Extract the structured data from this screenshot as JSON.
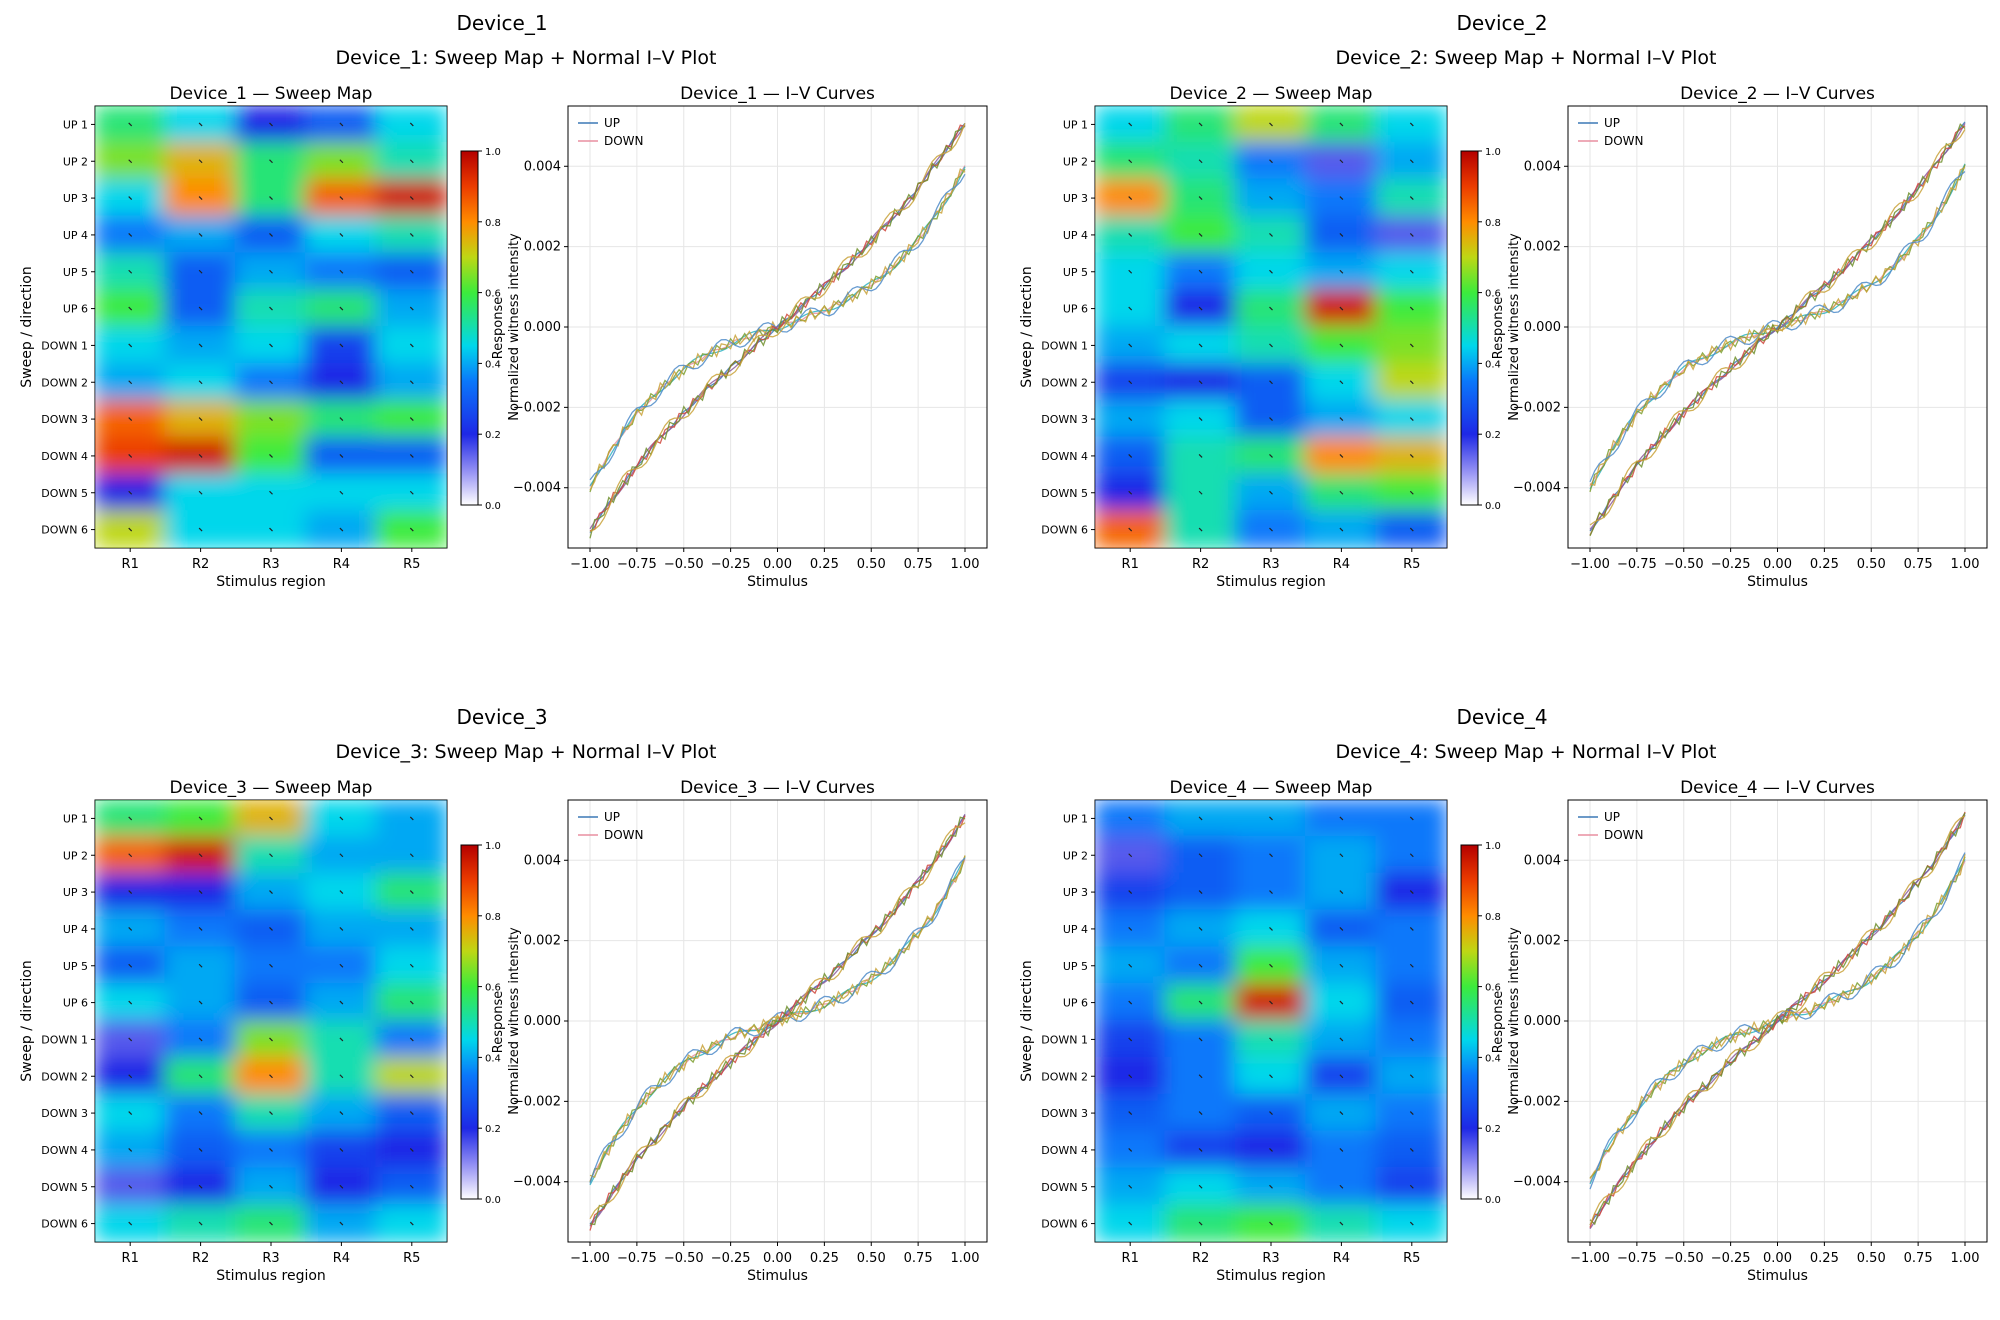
{
  "chart_data": [
    {
      "type": "composite",
      "device": "Device_1",
      "title": "Device_1",
      "subtitle": "Device_1: Sweep Map + Normal I–V Plot",
      "heatmap": {
        "type": "heatmap",
        "title": "Device_1 — Sweep Map",
        "xlabel": "Stimulus region",
        "ylabel": "Sweep / direction",
        "x_categories": [
          "R1",
          "R2",
          "R3",
          "R4",
          "R5"
        ],
        "y_categories": [
          "UP 1",
          "UP 2",
          "UP 3",
          "UP 4",
          "UP 5",
          "UP 6",
          "DOWN 1",
          "DOWN 2",
          "DOWN 3",
          "DOWN 4",
          "DOWN 5",
          "DOWN 6"
        ],
        "values": [
          [
            0.55,
            0.45,
            0.2,
            0.3,
            0.45
          ],
          [
            0.65,
            0.75,
            0.55,
            0.65,
            0.5
          ],
          [
            0.45,
            0.8,
            0.55,
            0.85,
            0.95
          ],
          [
            0.35,
            0.4,
            0.3,
            0.45,
            0.5
          ],
          [
            0.5,
            0.3,
            0.4,
            0.35,
            0.3
          ],
          [
            0.6,
            0.3,
            0.5,
            0.55,
            0.4
          ],
          [
            0.45,
            0.4,
            0.45,
            0.25,
            0.45
          ],
          [
            0.4,
            0.45,
            0.35,
            0.2,
            0.4
          ],
          [
            0.85,
            0.75,
            0.65,
            0.55,
            0.6
          ],
          [
            0.9,
            0.95,
            0.6,
            0.3,
            0.3
          ],
          [
            0.2,
            0.45,
            0.45,
            0.45,
            0.45
          ],
          [
            0.7,
            0.45,
            0.45,
            0.4,
            0.6
          ]
        ],
        "colorbar": {
          "label": "Response",
          "ticks": [
            "0.0",
            "0.2",
            "0.4",
            "0.6",
            "0.8",
            "1.0"
          ],
          "range": [
            0,
            1
          ]
        }
      },
      "iv": {
        "type": "line",
        "title": "Device_1 — I–V Curves",
        "xlabel": "Stimulus",
        "ylabel": "Normalized witness intensity",
        "xlim": [
          -1.0,
          1.0
        ],
        "ylim": [
          -0.0055,
          0.0055
        ],
        "xticks": [
          "−1.00",
          "−0.75",
          "−0.50",
          "−0.25",
          "0.00",
          "0.25",
          "0.50",
          "0.75",
          "1.00"
        ],
        "yticks": [
          "−0.004",
          "−0.002",
          "0.000",
          "0.002",
          "0.004"
        ],
        "legend": [
          "UP",
          "DOWN"
        ],
        "series": [
          {
            "name": "UP",
            "linear": 0.004,
            "cubic": 0.0011,
            "color": "#3b78b6"
          },
          {
            "name": "DOWN",
            "linear": 0.0015,
            "cubic": 0.0025,
            "color": "#e88fa0"
          }
        ]
      }
    },
    {
      "type": "composite",
      "device": "Device_2",
      "title": "Device_2",
      "subtitle": "Device_2: Sweep Map + Normal I–V Plot",
      "heatmap": {
        "type": "heatmap",
        "title": "Device_2 — Sweep Map",
        "xlabel": "Stimulus region",
        "ylabel": "Sweep / direction",
        "x_categories": [
          "R1",
          "R2",
          "R3",
          "R4",
          "R5"
        ],
        "y_categories": [
          "UP 1",
          "UP 2",
          "UP 3",
          "UP 4",
          "UP 5",
          "UP 6",
          "DOWN 1",
          "DOWN 2",
          "DOWN 3",
          "DOWN 4",
          "DOWN 5",
          "DOWN 6"
        ],
        "values": [
          [
            0.45,
            0.55,
            0.7,
            0.55,
            0.45
          ],
          [
            0.55,
            0.5,
            0.35,
            0.15,
            0.4
          ],
          [
            0.8,
            0.55,
            0.4,
            0.35,
            0.5
          ],
          [
            0.5,
            0.6,
            0.5,
            0.3,
            0.15
          ],
          [
            0.45,
            0.35,
            0.45,
            0.4,
            0.45
          ],
          [
            0.45,
            0.2,
            0.55,
            0.95,
            0.6
          ],
          [
            0.4,
            0.45,
            0.5,
            0.6,
            0.65
          ],
          [
            0.25,
            0.2,
            0.3,
            0.45,
            0.7
          ],
          [
            0.4,
            0.45,
            0.3,
            0.4,
            0.45
          ],
          [
            0.3,
            0.5,
            0.55,
            0.8,
            0.75
          ],
          [
            0.2,
            0.5,
            0.4,
            0.55,
            0.6
          ],
          [
            0.85,
            0.5,
            0.35,
            0.4,
            0.3
          ]
        ],
        "colorbar": {
          "label": "Response",
          "ticks": [
            "0.0",
            "0.2",
            "0.4",
            "0.6",
            "0.8",
            "1.0"
          ],
          "range": [
            0,
            1
          ]
        }
      },
      "iv": {
        "type": "line",
        "title": "Device_2 — I–V Curves",
        "xlabel": "Stimulus",
        "ylabel": "Normalized witness intensity",
        "xlim": [
          -1.0,
          1.0
        ],
        "ylim": [
          -0.0055,
          0.0055
        ],
        "xticks": [
          "−1.00",
          "−0.75",
          "−0.50",
          "−0.25",
          "0.00",
          "0.25",
          "0.50",
          "0.75",
          "1.00"
        ],
        "yticks": [
          "−0.004",
          "−0.002",
          "0.000",
          "0.002",
          "0.004"
        ],
        "legend": [
          "UP",
          "DOWN"
        ],
        "series": [
          {
            "name": "UP",
            "linear": 0.004,
            "cubic": 0.0011,
            "color": "#3b78b6"
          },
          {
            "name": "DOWN",
            "linear": 0.0015,
            "cubic": 0.0025,
            "color": "#e88fa0"
          }
        ]
      }
    },
    {
      "type": "composite",
      "device": "Device_3",
      "title": "Device_3",
      "subtitle": "Device_3: Sweep Map + Normal I–V Plot",
      "heatmap": {
        "type": "heatmap",
        "title": "Device_3 — Sweep Map",
        "xlabel": "Stimulus region",
        "ylabel": "Sweep / direction",
        "x_categories": [
          "R1",
          "R2",
          "R3",
          "R4",
          "R5"
        ],
        "y_categories": [
          "UP 1",
          "UP 2",
          "UP 3",
          "UP 4",
          "UP 5",
          "UP 6",
          "DOWN 1",
          "DOWN 2",
          "DOWN 3",
          "DOWN 4",
          "DOWN 5",
          "DOWN 6"
        ],
        "values": [
          [
            0.55,
            0.6,
            0.75,
            0.45,
            0.4
          ],
          [
            0.85,
            0.95,
            0.5,
            0.4,
            0.4
          ],
          [
            0.2,
            0.2,
            0.4,
            0.45,
            0.55
          ],
          [
            0.4,
            0.35,
            0.3,
            0.4,
            0.4
          ],
          [
            0.3,
            0.4,
            0.35,
            0.35,
            0.45
          ],
          [
            0.45,
            0.4,
            0.3,
            0.4,
            0.55
          ],
          [
            0.15,
            0.35,
            0.65,
            0.5,
            0.35
          ],
          [
            0.2,
            0.55,
            0.8,
            0.5,
            0.7
          ],
          [
            0.45,
            0.35,
            0.5,
            0.4,
            0.3
          ],
          [
            0.4,
            0.3,
            0.35,
            0.25,
            0.2
          ],
          [
            0.15,
            0.2,
            0.4,
            0.2,
            0.3
          ],
          [
            0.45,
            0.5,
            0.55,
            0.4,
            0.45
          ]
        ],
        "colorbar": {
          "label": "Response",
          "ticks": [
            "0.0",
            "0.2",
            "0.4",
            "0.6",
            "0.8",
            "1.0"
          ],
          "range": [
            0,
            1
          ]
        }
      },
      "iv": {
        "type": "line",
        "title": "Device_3 — I–V Curves",
        "xlabel": "Stimulus",
        "ylabel": "Normalized witness intensity",
        "xlim": [
          -1.0,
          1.0
        ],
        "ylim": [
          -0.0055,
          0.0055
        ],
        "xticks": [
          "−1.00",
          "−0.75",
          "−0.50",
          "−0.25",
          "0.00",
          "0.25",
          "0.50",
          "0.75",
          "1.00"
        ],
        "yticks": [
          "−0.004",
          "−0.002",
          "0.000",
          "0.002",
          "0.004"
        ],
        "legend": [
          "UP",
          "DOWN"
        ],
        "series": [
          {
            "name": "UP",
            "linear": 0.004,
            "cubic": 0.0011,
            "color": "#3b78b6"
          },
          {
            "name": "DOWN",
            "linear": 0.0015,
            "cubic": 0.0025,
            "color": "#e88fa0"
          }
        ]
      }
    },
    {
      "type": "composite",
      "device": "Device_4",
      "title": "Device_4",
      "subtitle": "Device_4: Sweep Map + Normal I–V Plot",
      "heatmap": {
        "type": "heatmap",
        "title": "Device_4 — Sweep Map",
        "xlabel": "Stimulus region",
        "ylabel": "Sweep / direction",
        "x_categories": [
          "R1",
          "R2",
          "R3",
          "R4",
          "R5"
        ],
        "y_categories": [
          "UP 1",
          "UP 2",
          "UP 3",
          "UP 4",
          "UP 5",
          "UP 6",
          "DOWN 1",
          "DOWN 2",
          "DOWN 3",
          "DOWN 4",
          "DOWN 5",
          "DOWN 6"
        ],
        "values": [
          [
            0.35,
            0.4,
            0.4,
            0.35,
            0.35
          ],
          [
            0.15,
            0.3,
            0.35,
            0.4,
            0.35
          ],
          [
            0.25,
            0.3,
            0.35,
            0.4,
            0.2
          ],
          [
            0.35,
            0.4,
            0.45,
            0.3,
            0.35
          ],
          [
            0.4,
            0.35,
            0.6,
            0.4,
            0.35
          ],
          [
            0.35,
            0.55,
            0.95,
            0.45,
            0.3
          ],
          [
            0.25,
            0.35,
            0.5,
            0.4,
            0.35
          ],
          [
            0.2,
            0.35,
            0.45,
            0.25,
            0.4
          ],
          [
            0.3,
            0.35,
            0.3,
            0.4,
            0.35
          ],
          [
            0.35,
            0.25,
            0.2,
            0.35,
            0.3
          ],
          [
            0.4,
            0.45,
            0.4,
            0.35,
            0.25
          ],
          [
            0.45,
            0.55,
            0.6,
            0.5,
            0.45
          ]
        ],
        "colorbar": {
          "label": "Response",
          "ticks": [
            "0.0",
            "0.2",
            "0.4",
            "0.6",
            "0.8",
            "1.0"
          ],
          "range": [
            0,
            1
          ]
        }
      },
      "iv": {
        "type": "line",
        "title": "Device_4 — I–V Curves",
        "xlabel": "Stimulus",
        "ylabel": "Normalized witness intensity",
        "xlim": [
          -1.0,
          1.0
        ],
        "ylim": [
          -0.0055,
          0.0055
        ],
        "xticks": [
          "−1.00",
          "−0.75",
          "−0.50",
          "−0.25",
          "0.00",
          "0.25",
          "0.50",
          "0.75",
          "1.00"
        ],
        "yticks": [
          "−0.004",
          "−0.002",
          "0.000",
          "0.002",
          "0.004"
        ],
        "legend": [
          "UP",
          "DOWN"
        ],
        "series": [
          {
            "name": "UP",
            "linear": 0.004,
            "cubic": 0.0011,
            "color": "#3b78b6"
          },
          {
            "name": "DOWN",
            "linear": 0.0015,
            "cubic": 0.0025,
            "color": "#e88fa0"
          }
        ]
      }
    }
  ]
}
